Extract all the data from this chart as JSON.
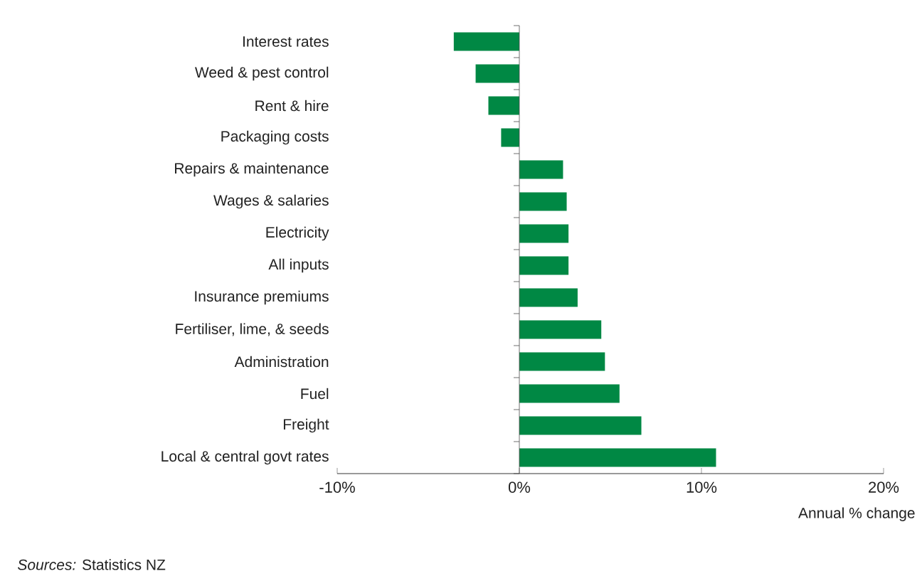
{
  "chart_data": {
    "type": "bar",
    "orientation": "horizontal",
    "xlabel": "Annual % change",
    "categories": [
      "Interest rates",
      "Weed & pest control",
      "Rent & hire",
      "Packaging costs",
      "Repairs & maintenance",
      "Wages & salaries",
      "Electricity",
      "All inputs",
      "Insurance premiums",
      "Fertiliser, lime, & seeds",
      "Administration",
      "Fuel",
      "Freight",
      "Local & central govt rates"
    ],
    "values": [
      -3.6,
      -2.4,
      -1.7,
      -1.0,
      2.4,
      2.6,
      2.7,
      2.7,
      3.2,
      4.5,
      4.7,
      5.5,
      6.7,
      10.8
    ],
    "color": "#008844",
    "xlim": [
      -10,
      20
    ],
    "xticks": [
      {
        "value": -10,
        "label": "-10%"
      },
      {
        "value": 0,
        "label": "0%"
      },
      {
        "value": 10,
        "label": "10%"
      },
      {
        "value": 20,
        "label": "20%"
      }
    ],
    "annotations": [
      "*Sources:* Statistics NZ"
    ]
  }
}
